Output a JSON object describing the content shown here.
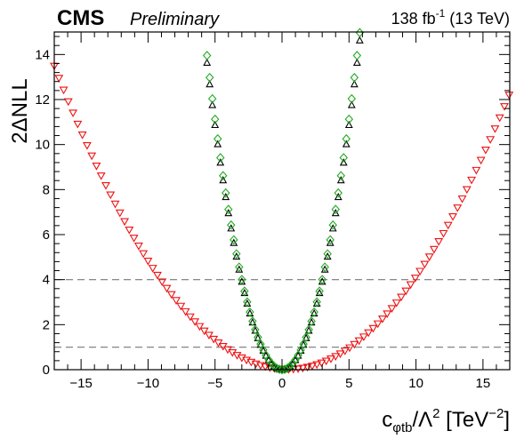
{
  "header": {
    "experiment": "CMS",
    "status": "Preliminary",
    "lumi_prefix": "138 fb",
    "lumi_exp": "-1",
    "lumi_suffix": " (13 TeV)"
  },
  "chart_data": {
    "type": "scatter",
    "xlabel_parts": {
      "c": "c",
      "sub": "φtb",
      "mid": "/Λ",
      "sq": "2",
      "unit": " [TeV",
      "uexp": "−2",
      "close": "]"
    },
    "ylabel": "2ΔNLL",
    "xlim": [
      -17,
      17
    ],
    "ylim": [
      0,
      15
    ],
    "xticks": [
      -15,
      -10,
      -5,
      0,
      5,
      10,
      15
    ],
    "yticks": [
      0,
      2,
      4,
      6,
      8,
      10,
      12,
      14
    ],
    "reference_lines": [
      1,
      4
    ],
    "grid": false,
    "series": [
      {
        "marker": "triangle-down",
        "color": "#ee1111",
        "x_min": -17,
        "x_max": 17,
        "step": 0.35,
        "curvature": 0.0445,
        "minimum_x": 0.4
      },
      {
        "marker": "triangle-up",
        "color": "#000000",
        "x_min": -5.6,
        "x_max": 5.9,
        "step": 0.2,
        "curvature": 0.435,
        "minimum_x": 0
      },
      {
        "marker": "diamond",
        "color": "#22aa22",
        "x_min": -5.6,
        "x_max": 5.9,
        "step": 0.2,
        "curvature": 0.445,
        "minimum_x": 0
      }
    ]
  }
}
